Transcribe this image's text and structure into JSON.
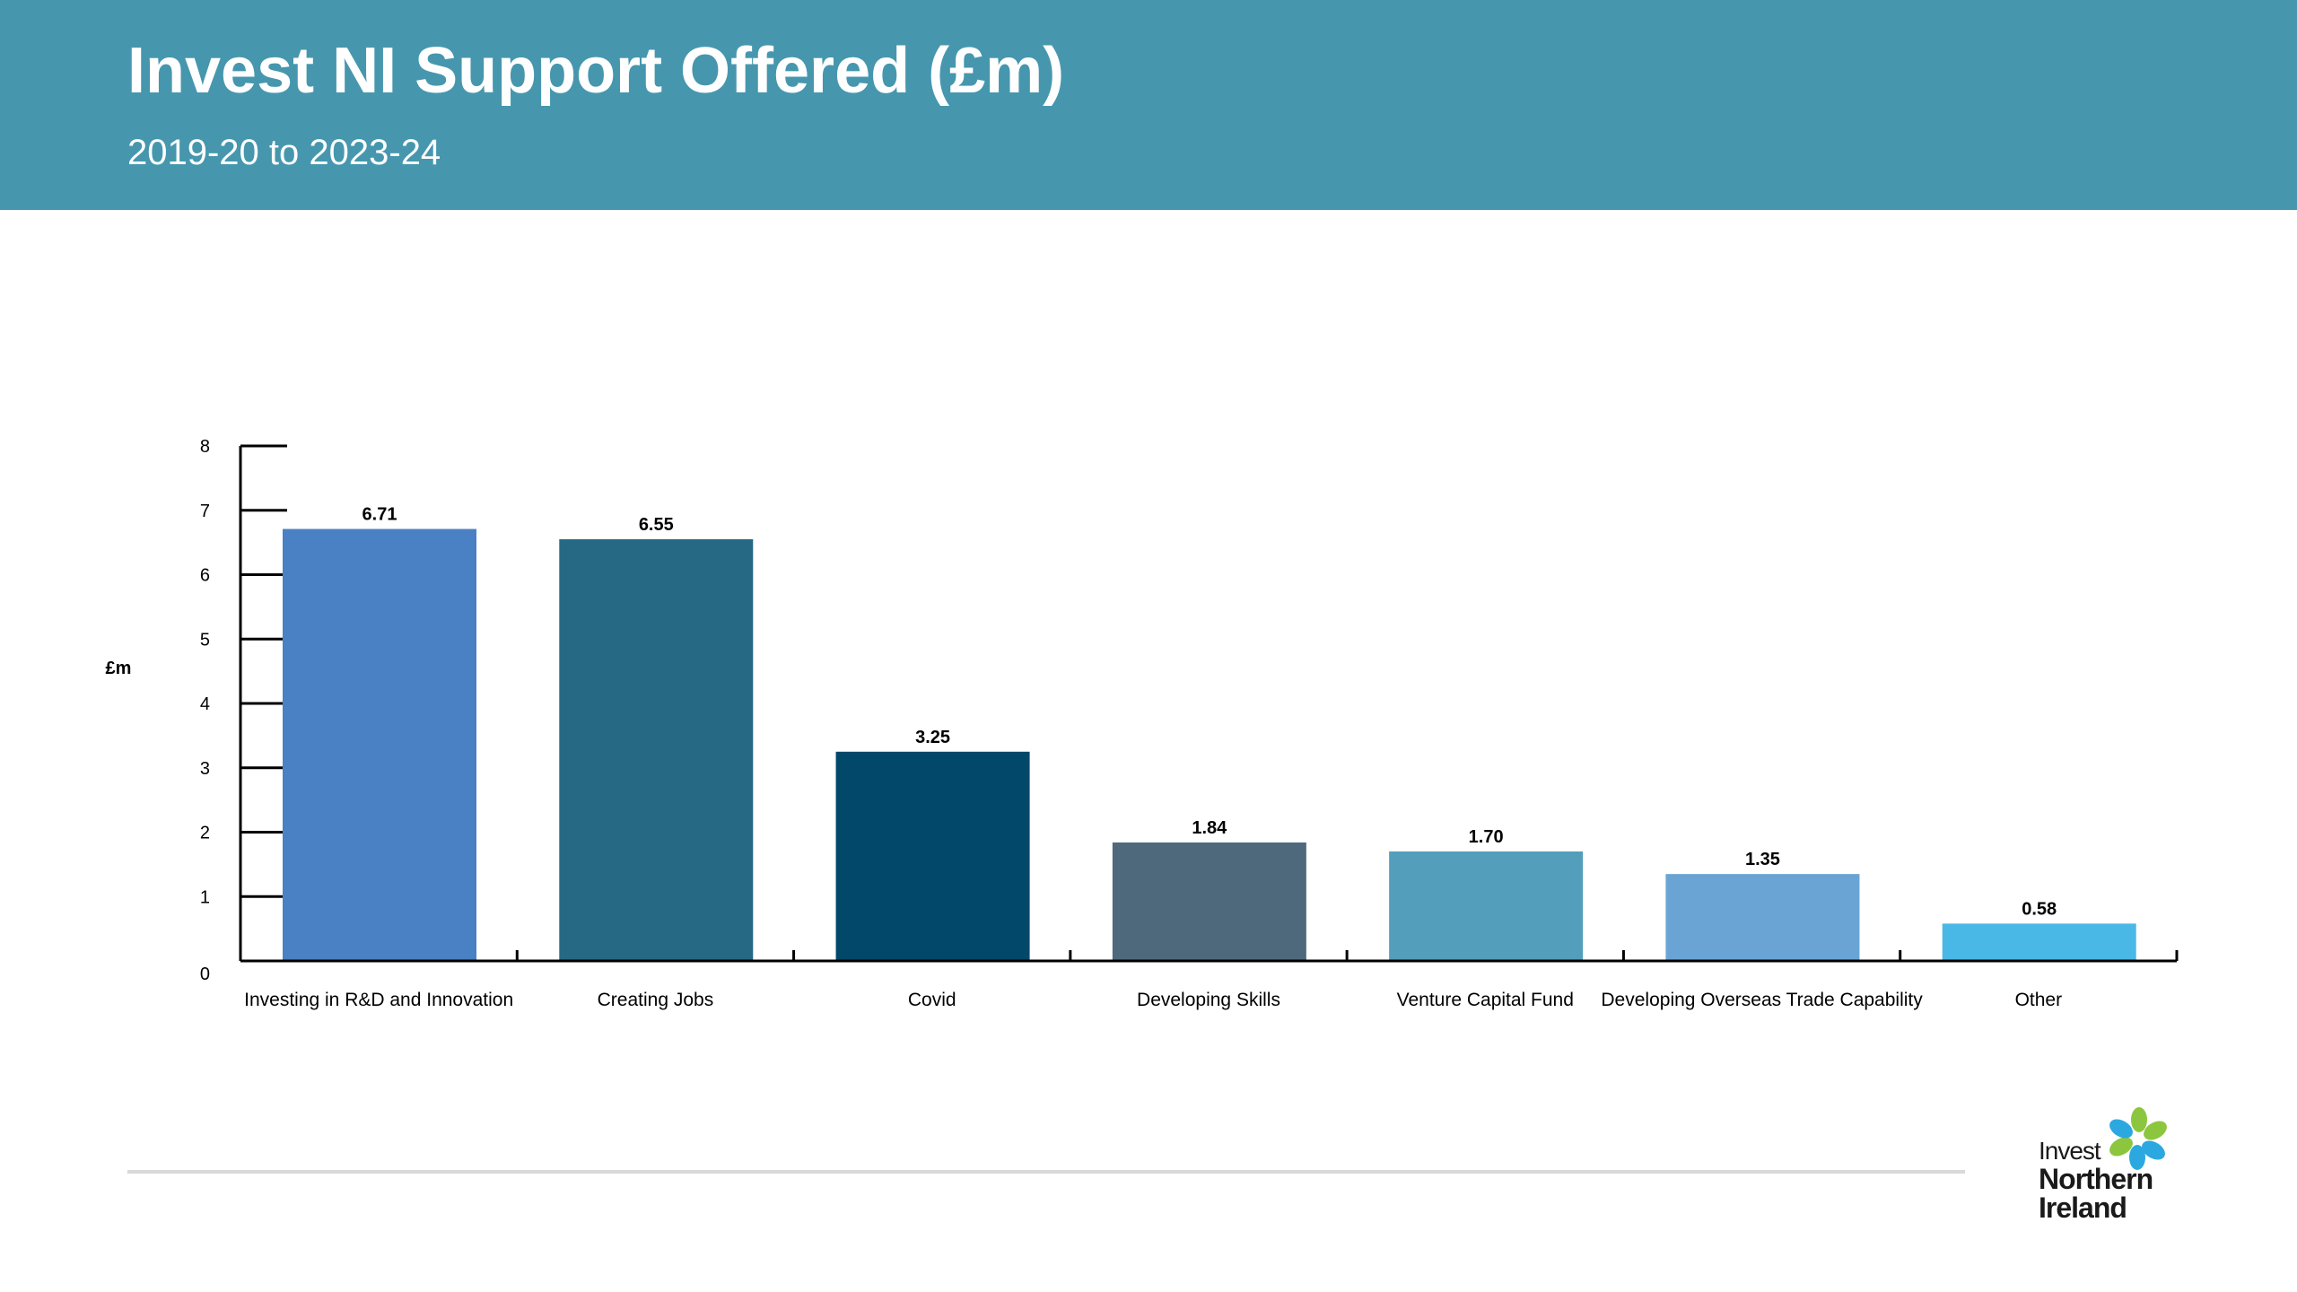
{
  "header": {
    "title": "Invest NI Support Offered (£m)",
    "subtitle": "2019-20 to 2023-24",
    "background_color": "#4697ae"
  },
  "chart_data": {
    "type": "bar",
    "title": "Invest NI Support Offered (£m)",
    "subtitle": "2019-20 to 2023-24",
    "xlabel": "",
    "ylabel": "£m",
    "ylim": [
      0,
      8
    ],
    "yticks": [
      0,
      1,
      2,
      3,
      4,
      5,
      6,
      7,
      8
    ],
    "grid": false,
    "legend": "none",
    "categories": [
      "Investing in R&D and Innovation",
      "Creating Jobs",
      "Covid",
      "Developing Skills",
      "Venture Capital Fund",
      "Developing Overseas Trade Capability",
      "Other"
    ],
    "values": [
      6.71,
      6.55,
      3.25,
      1.84,
      1.7,
      1.35,
      0.58
    ],
    "value_labels": [
      "6.71",
      "6.55",
      "3.25",
      "1.84",
      "1.70",
      "1.35",
      "0.58"
    ],
    "colors": [
      "#4a80c4",
      "#256985",
      "#02486a",
      "#4f697c",
      "#539ebb",
      "#69a4d5",
      "#4ab8e6"
    ]
  },
  "logo": {
    "line1": "Invest",
    "line2": "Northern",
    "line3": "Ireland",
    "petal_colors": [
      "#8cc63f",
      "#2ba8e0",
      "#2ba8e0",
      "#8cc63f",
      "#2ba8e0",
      "#8cc63f"
    ]
  }
}
